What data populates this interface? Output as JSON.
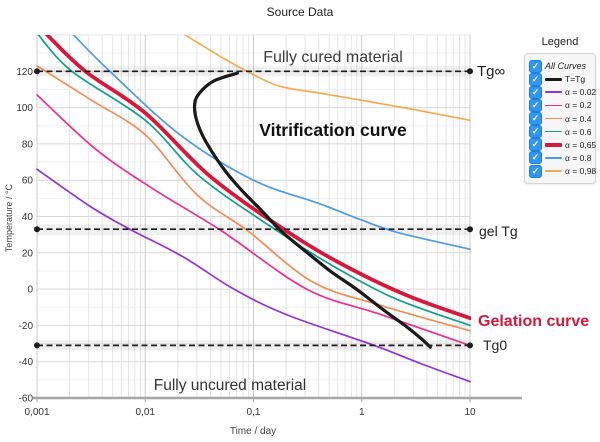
{
  "title": "Source Data",
  "plot": {
    "annotations": {
      "fully_cured": "Fully cured material",
      "vitrification": "Vitrification curve",
      "fully_uncured": "Fully uncured material",
      "gelation": "Gelation curve",
      "tg_inf": "Tg∞",
      "gel_tg": "gel Tg",
      "tg0": "Tg0"
    }
  },
  "legend": {
    "title": "Legend",
    "items": [
      {
        "label": "All Curves",
        "checked": true,
        "italic": true
      },
      {
        "label": "T=Tg",
        "checked": true,
        "color": "#1a1a1a",
        "thick": 3
      },
      {
        "label": "α = 0.02",
        "checked": true,
        "color": "#9232D8",
        "thick": 1.6
      },
      {
        "label": "α = 0.2",
        "checked": true,
        "color": "#EE2D93",
        "thick": 1.6
      },
      {
        "label": "α = 0.4",
        "checked": true,
        "color": "#F58B55",
        "thick": 1.6
      },
      {
        "label": "α = 0.6",
        "checked": true,
        "color": "#14A08A",
        "thick": 1.6
      },
      {
        "label": "α = 0,65",
        "checked": true,
        "color": "#D8183A",
        "thick": 3.6
      },
      {
        "label": "α = 0.8",
        "checked": true,
        "color": "#4D9BE6",
        "thick": 1.6
      },
      {
        "label": "α = 0,98",
        "checked": true,
        "color": "#F6A94E",
        "thick": 1.6
      }
    ]
  },
  "chart_data": {
    "type": "line",
    "title": "Source Data",
    "x_axis": {
      "label": "Time / day",
      "scale": "log",
      "range": [
        0.001,
        10
      ],
      "ticks": [
        0.001,
        0.01,
        0.1,
        1,
        10
      ],
      "tick_labels": [
        "0,001",
        "0,01",
        "0,1",
        "1",
        "10"
      ]
    },
    "y_axis": {
      "label": "Temperature / °C",
      "range": [
        -60,
        140
      ],
      "ticks": [
        120,
        100,
        80,
        60,
        40,
        20,
        0,
        -20,
        -40,
        -60
      ]
    },
    "grid": true,
    "legend_position": "right",
    "reference_lines": [
      {
        "label": "Tg∞",
        "T": 120
      },
      {
        "label": "gel Tg",
        "T": 33
      },
      {
        "label": "Tg0",
        "T": -31
      }
    ],
    "series": [
      {
        "name": "α = 0.02",
        "color": "#9232D8",
        "width": 1.7,
        "points": [
          [
            0.001,
            66
          ],
          [
            0.0032,
            45
          ],
          [
            0.0072,
            33
          ],
          [
            0.022,
            18
          ],
          [
            0.066,
            0
          ],
          [
            0.2,
            -14
          ],
          [
            1.3,
            -31
          ],
          [
            3.5,
            -41
          ],
          [
            10,
            -51
          ]
        ]
      },
      {
        "name": "α = 0.2",
        "color": "#EE2D93",
        "width": 1.7,
        "points": [
          [
            0.001,
            107
          ],
          [
            0.0035,
            77
          ],
          [
            0.012,
            55
          ],
          [
            0.051,
            32
          ],
          [
            0.31,
            0
          ],
          [
            1.5,
            -14
          ],
          [
            10,
            -31
          ]
        ]
      },
      {
        "name": "α = 0.4",
        "color": "#F58B55",
        "width": 1.7,
        "points": [
          [
            0.001,
            123
          ],
          [
            0.0032,
            104
          ],
          [
            0.01,
            85
          ],
          [
            0.03,
            52
          ],
          [
            0.089,
            32
          ],
          [
            0.35,
            4
          ],
          [
            1.5,
            -9
          ],
          [
            10,
            -23
          ]
        ]
      },
      {
        "name": "α = 0.6",
        "color": "#14A08A",
        "width": 1.7,
        "points": [
          [
            0.001,
            141
          ],
          [
            0.0021,
            120
          ],
          [
            0.01,
            93
          ],
          [
            0.032,
            62
          ],
          [
            0.157,
            33
          ],
          [
            0.5,
            14
          ],
          [
            2,
            -5
          ],
          [
            10,
            -20
          ]
        ]
      },
      {
        "name": "α = 0,98",
        "color": "#F6A94E",
        "width": 1.7,
        "points": [
          [
            0.022,
            141
          ],
          [
            0.05,
            128
          ],
          [
            0.087,
            120
          ],
          [
            0.17,
            112
          ],
          [
            0.41,
            108
          ],
          [
            1,
            104
          ],
          [
            3,
            99
          ],
          [
            10,
            93
          ]
        ]
      },
      {
        "name": "α = 0.8",
        "color": "#4D9BE6",
        "width": 1.7,
        "points": [
          [
            0.0021,
            141
          ],
          [
            0.0047,
            120
          ],
          [
            0.021,
            85
          ],
          [
            0.1,
            60
          ],
          [
            0.41,
            47
          ],
          [
            1,
            38
          ],
          [
            2.2,
            31
          ],
          [
            10,
            22
          ]
        ]
      },
      {
        "name": "α = 0,65",
        "color": "#D8183A",
        "width": 3.8,
        "points": [
          [
            0.0012,
            141
          ],
          [
            0.0028,
            120
          ],
          [
            0.01,
            97
          ],
          [
            0.04,
            62
          ],
          [
            0.19,
            33
          ],
          [
            0.6,
            15
          ],
          [
            2.5,
            -3
          ],
          [
            10,
            -16
          ]
        ]
      },
      {
        "name": "T=Tg",
        "color": "#1a1a1a",
        "width": 3.2,
        "points": [
          [
            0.071,
            119
          ],
          [
            0.044,
            115
          ],
          [
            0.034,
            110
          ],
          [
            0.029,
            104
          ],
          [
            0.029,
            96
          ],
          [
            0.033,
            86
          ],
          [
            0.041,
            76
          ],
          [
            0.055,
            65
          ],
          [
            0.079,
            54
          ],
          [
            0.12,
            43
          ],
          [
            0.18,
            32
          ],
          [
            0.3,
            21
          ],
          [
            0.51,
            10
          ],
          [
            0.89,
            0
          ],
          [
            1.55,
            -11
          ],
          [
            2.5,
            -20
          ],
          [
            3.5,
            -27
          ],
          [
            4.3,
            -32
          ]
        ]
      }
    ]
  }
}
